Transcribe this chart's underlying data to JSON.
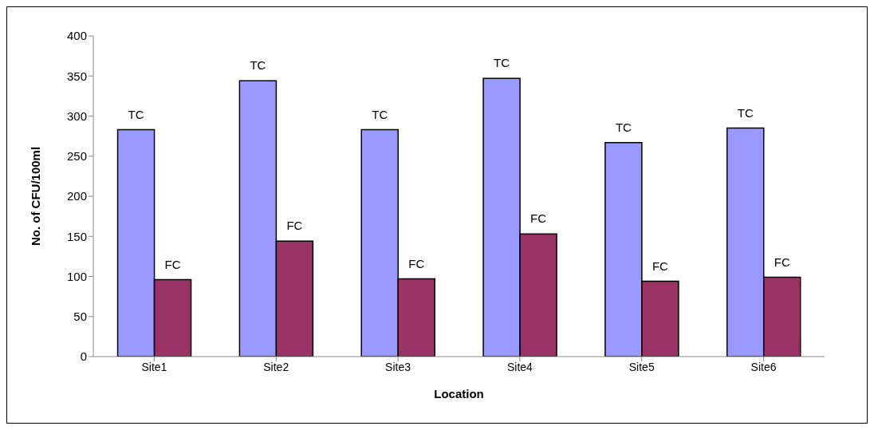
{
  "chart_data": {
    "type": "bar",
    "xlabel": "Location",
    "ylabel": "No. of CFU/100ml",
    "categories": [
      "Site1",
      "Site2",
      "Site3",
      "Site4",
      "Site5",
      "Site6"
    ],
    "series": [
      {
        "name": "TC",
        "color": "#9999ff",
        "values": [
          283,
          344,
          283,
          347,
          267,
          285
        ]
      },
      {
        "name": "FC",
        "color": "#993366",
        "values": [
          96,
          144,
          97,
          153,
          94,
          99
        ]
      }
    ],
    "ylim": [
      0,
      400
    ],
    "yticks": [
      0,
      50,
      100,
      150,
      200,
      250,
      300,
      350,
      400
    ],
    "grid": false,
    "legend": false
  }
}
